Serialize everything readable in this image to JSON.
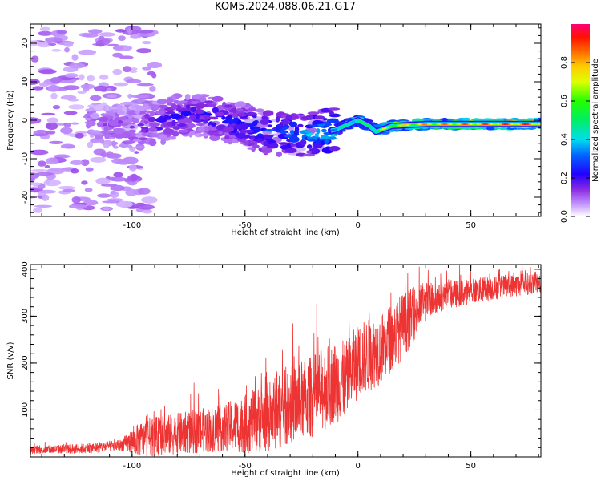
{
  "title": "KOM5.2024.088.06.21.G17",
  "colors": {
    "snr_line": "#ee3333",
    "axis": "#000000"
  },
  "chart_data": [
    {
      "type": "heatmap",
      "xlabel": "Height of straight line (km)",
      "ylabel": "Frequency (Hz)",
      "xlim": [
        -145,
        81
      ],
      "ylim": [
        -25,
        25
      ],
      "xticks": [
        -100,
        -50,
        0,
        50
      ],
      "yticks": [
        -20,
        -10,
        0,
        10,
        20
      ],
      "colorbar": {
        "label": "Normalized spectral amplitude",
        "range": [
          0,
          1
        ],
        "ticks": [
          0.0,
          0.2,
          0.4,
          0.6,
          0.8
        ],
        "colormap": "rainbow (white-violet-blue-cyan-green-yellow-red-magenta)"
      },
      "ridge": [
        {
          "x": -120,
          "f": -1.0,
          "a": 0.1
        },
        {
          "x": -100,
          "f": -2.0,
          "a": 0.15
        },
        {
          "x": -90,
          "f": -1.0,
          "a": 0.18
        },
        {
          "x": -80,
          "f": 1.0,
          "a": 0.2
        },
        {
          "x": -70,
          "f": 1.5,
          "a": 0.2
        },
        {
          "x": -60,
          "f": 0.0,
          "a": 0.22
        },
        {
          "x": -50,
          "f": -1.5,
          "a": 0.25
        },
        {
          "x": -40,
          "f": -3.0,
          "a": 0.28
        },
        {
          "x": -30,
          "f": -4.0,
          "a": 0.3
        },
        {
          "x": -20,
          "f": -3.5,
          "a": 0.35
        },
        {
          "x": -10,
          "f": -2.5,
          "a": 0.45
        },
        {
          "x": 0,
          "f": 0.0,
          "a": 0.55
        },
        {
          "x": 5,
          "f": -1.5,
          "a": 0.6
        },
        {
          "x": 8,
          "f": -3.0,
          "a": 0.65
        },
        {
          "x": 15,
          "f": -1.5,
          "a": 0.75
        },
        {
          "x": 30,
          "f": -1.0,
          "a": 0.85
        },
        {
          "x": 50,
          "f": -1.0,
          "a": 0.9
        },
        {
          "x": 81,
          "f": -1.0,
          "a": 0.95
        }
      ]
    },
    {
      "type": "line",
      "xlabel": "Height of straight line (km)",
      "ylabel": "SNR (v/v)",
      "xlim": [
        -145,
        81
      ],
      "ylim": [
        0,
        410
      ],
      "xticks": [
        -100,
        -50,
        0,
        50
      ],
      "yticks": [
        100,
        200,
        300,
        400
      ],
      "series": [
        {
          "trend": [
            {
              "x": -145,
              "y": 15
            },
            {
              "x": -120,
              "y": 18
            },
            {
              "x": -105,
              "y": 25
            },
            {
              "x": -95,
              "y": 40
            },
            {
              "x": -70,
              "y": 55
            },
            {
              "x": -50,
              "y": 70
            },
            {
              "x": -40,
              "y": 85
            },
            {
              "x": -30,
              "y": 110
            },
            {
              "x": -20,
              "y": 130
            },
            {
              "x": -10,
              "y": 160
            },
            {
              "x": -5,
              "y": 165
            },
            {
              "x": 0,
              "y": 205
            },
            {
              "x": 10,
              "y": 230
            },
            {
              "x": 20,
              "y": 280
            },
            {
              "x": 30,
              "y": 330
            },
            {
              "x": 40,
              "y": 345
            },
            {
              "x": 60,
              "y": 360
            },
            {
              "x": 81,
              "y": 372
            }
          ],
          "noise": [
            {
              "x": -145,
              "a": 8
            },
            {
              "x": -105,
              "a": 12
            },
            {
              "x": -95,
              "a": 40
            },
            {
              "x": -60,
              "a": 50
            },
            {
              "x": -35,
              "a": 80
            },
            {
              "x": -15,
              "a": 90
            },
            {
              "x": 0,
              "a": 80
            },
            {
              "x": 20,
              "a": 70
            },
            {
              "x": 35,
              "a": 30
            },
            {
              "x": 81,
              "a": 22
            }
          ]
        }
      ]
    }
  ]
}
